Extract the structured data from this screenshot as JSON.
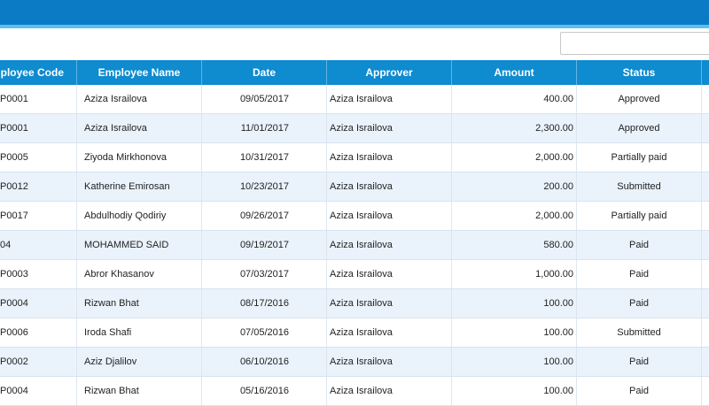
{
  "search": {
    "value": "",
    "placeholder": ""
  },
  "table": {
    "columns": [
      "Employee Code",
      "Employee Name",
      "Date",
      "Approver",
      "Amount",
      "Status"
    ],
    "rows": [
      {
        "code": "P0001",
        "name": "Aziza Israilova",
        "date": "09/05/2017",
        "approver": "Aziza Israilova",
        "amount": "400.00",
        "status": "Approved"
      },
      {
        "code": "P0001",
        "name": "Aziza Israilova",
        "date": "11/01/2017",
        "approver": "Aziza Israilova",
        "amount": "2,300.00",
        "status": "Approved"
      },
      {
        "code": "P0005",
        "name": "Ziyoda Mirkhonova",
        "date": "10/31/2017",
        "approver": "Aziza Israilova",
        "amount": "2,000.00",
        "status": "Partially paid"
      },
      {
        "code": "P0012",
        "name": "Katherine Emirosan",
        "date": "10/23/2017",
        "approver": "Aziza Israilova",
        "amount": "200.00",
        "status": "Submitted"
      },
      {
        "code": "P0017",
        "name": "Abdulhodiy Qodiriy",
        "date": "09/26/2017",
        "approver": "Aziza Israilova",
        "amount": "2,000.00",
        "status": "Partially paid"
      },
      {
        "code": "04",
        "name": "MOHAMMED SAID",
        "date": "09/19/2017",
        "approver": "Aziza Israilova",
        "amount": "580.00",
        "status": "Paid"
      },
      {
        "code": "P0003",
        "name": "Abror Khasanov",
        "date": "07/03/2017",
        "approver": "Aziza Israilova",
        "amount": "1,000.00",
        "status": "Paid"
      },
      {
        "code": "P0004",
        "name": "Rizwan Bhat",
        "date": "08/17/2016",
        "approver": "Aziza Israilova",
        "amount": "100.00",
        "status": "Paid"
      },
      {
        "code": "P0006",
        "name": "Iroda Shafi",
        "date": "07/05/2016",
        "approver": "Aziza Israilova",
        "amount": "100.00",
        "status": "Submitted"
      },
      {
        "code": "P0002",
        "name": "Aziz Djalilov",
        "date": "06/10/2016",
        "approver": "Aziza Israilova",
        "amount": "100.00",
        "status": "Paid"
      },
      {
        "code": "P0004",
        "name": "Rizwan Bhat",
        "date": "05/16/2016",
        "approver": "Aziza Israilova",
        "amount": "100.00",
        "status": "Paid"
      }
    ]
  },
  "colors": {
    "top_bar": "#0a7bc4",
    "header": "#0f8bcf",
    "row_alt": "#eaf3fc"
  }
}
